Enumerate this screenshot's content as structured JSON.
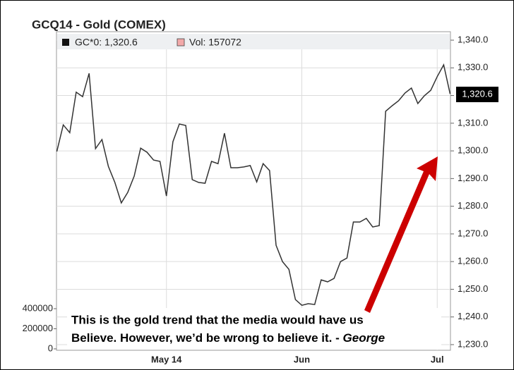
{
  "chart_data": {
    "type": "line",
    "title": "GCQ14 - Gold (COMEX)",
    "legend": {
      "price": "GC*0: 1,320.6",
      "volume": "Vol: 157072"
    },
    "last_label": "1,320.6",
    "annotation": {
      "line1": "This is the gold trend that the media would have us",
      "line2": "Believe. However, we’d be wrong to believe it. - ",
      "author": "George"
    },
    "categories": [
      null,
      null,
      null,
      null,
      null,
      null,
      null,
      null,
      null,
      null,
      null,
      null,
      null,
      null,
      null,
      null,
      null,
      "May 14",
      null,
      null,
      null,
      null,
      null,
      null,
      null,
      null,
      null,
      null,
      null,
      null,
      null,
      null,
      null,
      null,
      null,
      null,
      null,
      null,
      "Jun",
      null,
      null,
      null,
      null,
      null,
      null,
      null,
      null,
      null,
      null,
      null,
      null,
      null,
      null,
      null,
      null,
      null,
      null,
      null,
      null,
      "Jul",
      null,
      null
    ],
    "series": [
      {
        "name": "GC*0",
        "color": "#333333",
        "values": [
          1299.8,
          1309.4,
          1306.6,
          1321.2,
          1319.6,
          1328.0,
          1300.8,
          1304.1,
          1294.4,
          1288.6,
          1281.2,
          1285.0,
          1290.9,
          1301.0,
          1299.5,
          1296.7,
          1296.2,
          1283.7,
          1303.3,
          1309.7,
          1309.2,
          1289.6,
          1288.6,
          1288.3,
          1296.2,
          1295.4,
          1306.4,
          1293.9,
          1293.9,
          1294.2,
          1294.7,
          1288.8,
          1295.4,
          1292.9,
          1265.9,
          1260.0,
          1257.2,
          1246.3,
          1244.2,
          1244.8,
          1244.5,
          1253.4,
          1252.7,
          1253.9,
          1260.0,
          1261.3,
          1274.3,
          1274.3,
          1275.6,
          1272.5,
          1273.0,
          1314.3,
          1316.3,
          1318.1,
          1320.9,
          1322.7,
          1317.1,
          1319.9,
          1321.9,
          1326.8,
          1331.1,
          1320.6
        ]
      }
    ],
    "ylim": [
      1230,
      1340
    ],
    "yticks": [
      {
        "value": 1230,
        "label": "1,230.0"
      },
      {
        "value": 1240,
        "label": "1,240.0"
      },
      {
        "value": 1250,
        "label": "1,250.0"
      },
      {
        "value": 1260,
        "label": "1,260.0"
      },
      {
        "value": 1270,
        "label": "1,270.0"
      },
      {
        "value": 1280,
        "label": "1,280.0"
      },
      {
        "value": 1290,
        "label": "1,290.0"
      },
      {
        "value": 1300,
        "label": "1,300.0"
      },
      {
        "value": 1310,
        "label": "1,310.0"
      },
      {
        "value": 1320,
        "label": "1,320.0"
      },
      {
        "value": 1330,
        "label": "1,330.0"
      },
      {
        "value": 1340,
        "label": "1,340.0"
      }
    ],
    "volume_ylim": [
      0,
      400000
    ],
    "volume_yticks": [
      0,
      200000,
      400000
    ],
    "grid": true
  }
}
